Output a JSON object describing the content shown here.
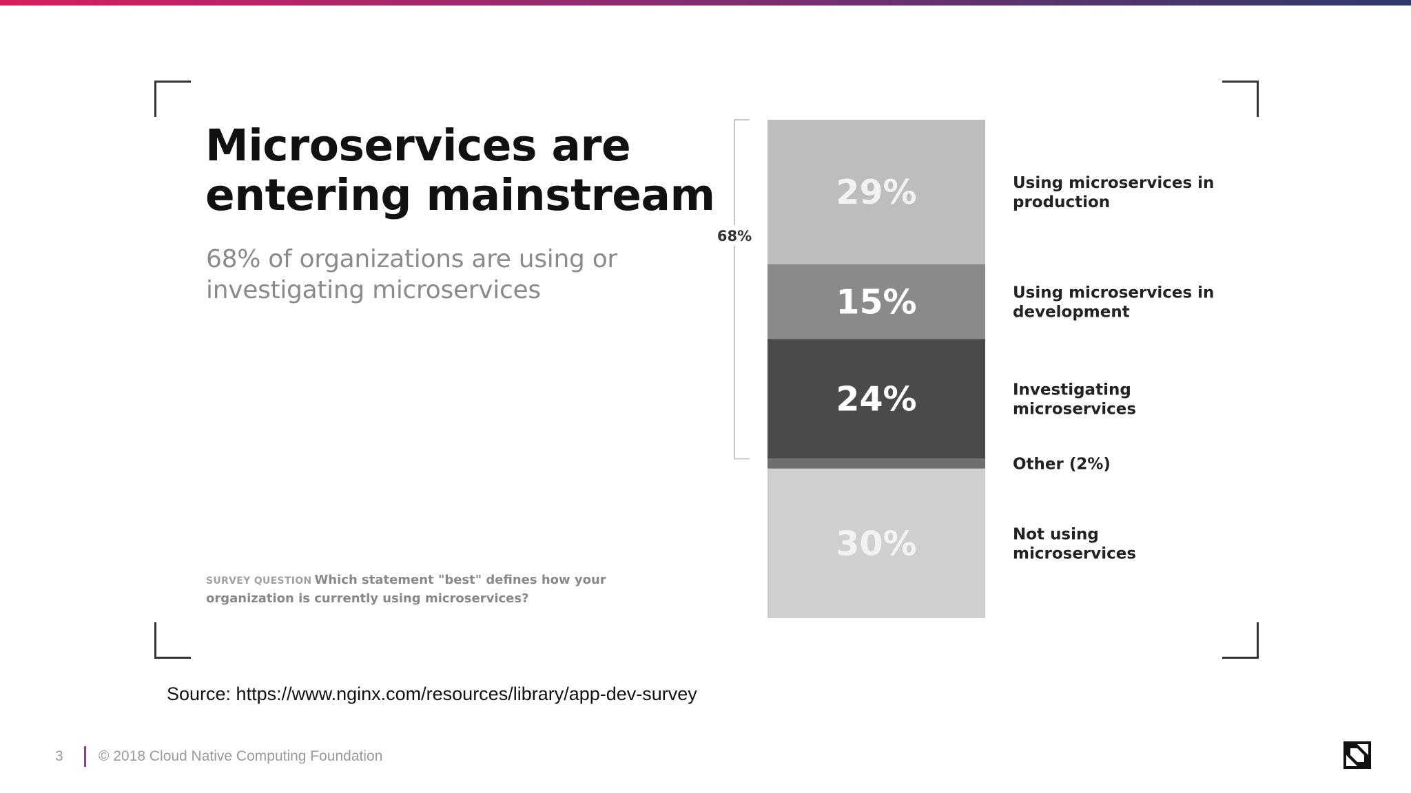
{
  "headline": "Microservices are entering mainstream",
  "subheadline": "68% of organizations are using or investigating microservices",
  "survey": {
    "label": "SURVEY QUESTION",
    "question": "Which statement \"best\" defines how your organization is currently using microservices?"
  },
  "source": "Source: https://www.nginx.com/resources/library/app-dev-survey",
  "footer": {
    "page_number": "3",
    "copyright": "© 2018 Cloud Native Computing Foundation"
  },
  "colors": {
    "accent_start": "#d81f5e",
    "accent_end": "#2e3a6b"
  },
  "icons": {
    "logo": "cncf-logo-icon"
  },
  "chart_data": {
    "type": "bar",
    "stacked": true,
    "orientation": "vertical",
    "series": [
      {
        "name": "Using microservices in production",
        "value": 29,
        "label": "29%",
        "color": "#bdbdbd",
        "text_color": "#f2f2f2"
      },
      {
        "name": "Using microservices in development",
        "value": 15,
        "label": "15%",
        "color": "#8a8a8a",
        "text_color": "#ffffff"
      },
      {
        "name": "Investigating microservices",
        "value": 24,
        "label": "24%",
        "color": "#4a4a4a",
        "text_color": "#ffffff"
      },
      {
        "name": "Other (2%)",
        "value": 2,
        "label": "",
        "color": "#6e6e6e",
        "text_color": "#ffffff"
      },
      {
        "name": "Not using microservices",
        "value": 30,
        "label": "30%",
        "color": "#cfcfcf",
        "text_color": "#f2f2f2"
      }
    ],
    "bracket": {
      "label": "68%",
      "span_series": [
        0,
        2
      ]
    },
    "ylim": [
      0,
      100
    ]
  }
}
